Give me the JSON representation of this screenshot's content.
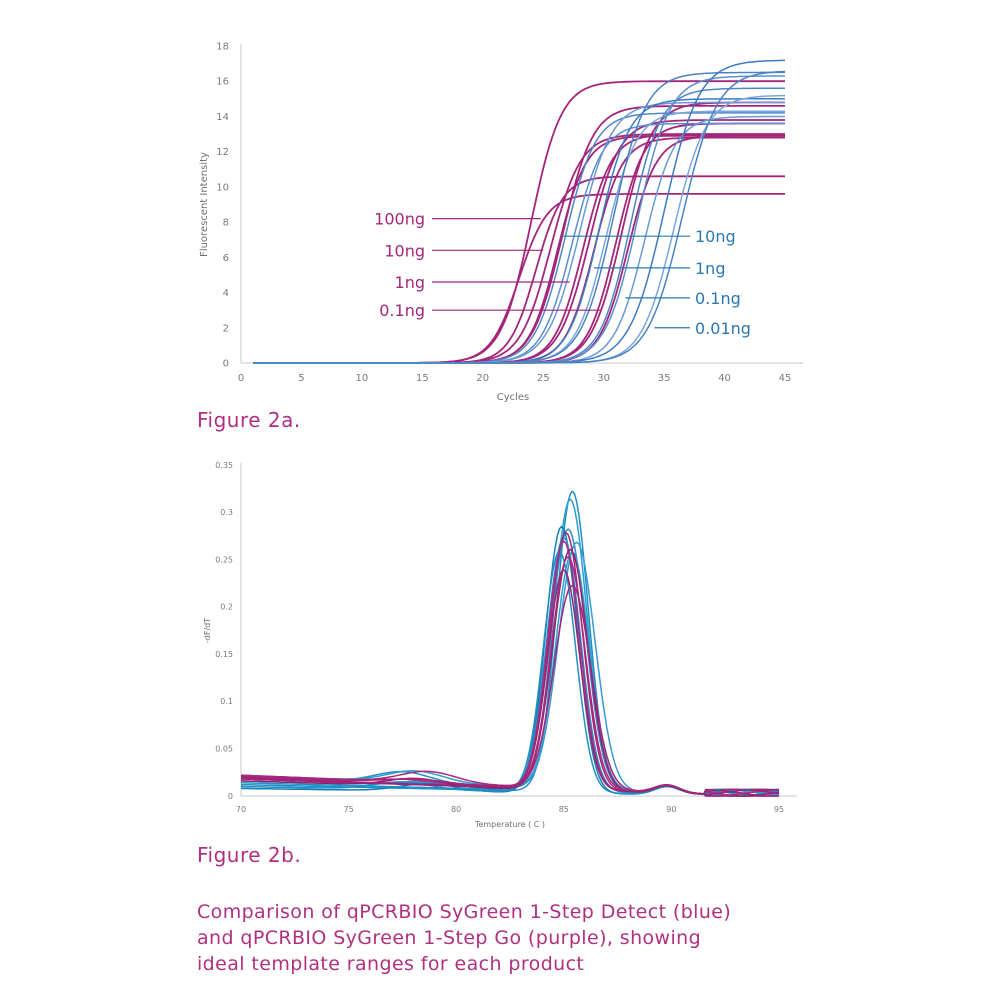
{
  "figures": {
    "fig2a": "Figure 2a.",
    "fig2b": "Figure 2b."
  },
  "caption": {
    "line1": "Comparison of qPCRBIO SyGreen 1-Step Detect (blue)",
    "line2": "and qPCRBIO SyGreen 1-Step Go (purple), showing",
    "line3": "ideal template ranges for each product"
  },
  "colors": {
    "purple": "#a4267a",
    "blue_series": [
      "#4f86c6",
      "#5b8fcf",
      "#6a99d5",
      "#3d7bbf",
      "#7aa6db",
      "#4a82c4"
    ],
    "blue_label": "#2a78b0",
    "blue_melt": [
      "#1f8fc4",
      "#2a9fd0",
      "#157fb8",
      "#2d8cc8",
      "#1993c9",
      "#3a98d2"
    ],
    "purple_melt": [
      "#a4267a",
      "#b02d84",
      "#962070",
      "#a92b7f",
      "#9a2375"
    ],
    "axis": "#c9c9c9",
    "tick_text": "#7a7a7a"
  },
  "chart_data": [
    {
      "type": "line",
      "xlabel": "Cycles",
      "ylabel": "Fluorescent Intensity",
      "xlim": [
        0,
        45
      ],
      "ylim": [
        0,
        18
      ],
      "xticks": [
        "0",
        "5",
        "10",
        "15",
        "20",
        "25",
        "30",
        "35",
        "40",
        "45"
      ],
      "yticks": [
        "0",
        "2",
        "4",
        "6",
        "8",
        "10",
        "12",
        "14",
        "16",
        "18"
      ],
      "x_start": 1,
      "annotations_left": [
        {
          "text": "100ng",
          "x": 24.8,
          "y": 8.2,
          "label_y": 8.2
        },
        {
          "text": "10ng",
          "x": 25.0,
          "y": 6.4,
          "label_y": 6.4
        },
        {
          "text": "1ng",
          "x": 27.2,
          "y": 4.6,
          "label_y": 4.6
        },
        {
          "text": "0.1ng",
          "x": 29.8,
          "y": 3.0,
          "label_y": 3.0
        }
      ],
      "annotations_right": [
        {
          "text": "10ng",
          "x": 26.5,
          "y": 7.2,
          "label_y": 7.2
        },
        {
          "text": "1ng",
          "x": 29.2,
          "y": 5.4,
          "label_y": 5.4
        },
        {
          "text": "0.1ng",
          "x": 31.8,
          "y": 3.7,
          "label_y": 3.7
        },
        {
          "text": "0.01ng",
          "x": 34.2,
          "y": 2.0,
          "label_y": 2.0
        }
      ],
      "series": [
        {
          "group": "purple",
          "midpoint": 23.0,
          "plateau": 9.6,
          "k": 0.85
        },
        {
          "group": "purple",
          "midpoint": 24.0,
          "plateau": 16.0,
          "k": 0.8
        },
        {
          "group": "purple",
          "midpoint": 24.4,
          "plateau": 10.6,
          "k": 0.9
        },
        {
          "group": "purple",
          "midpoint": 25.6,
          "plateau": 13.0,
          "k": 0.8
        },
        {
          "group": "purple",
          "midpoint": 26.2,
          "plateau": 12.9,
          "k": 0.85
        },
        {
          "group": "purple",
          "midpoint": 26.6,
          "plateau": 14.6,
          "k": 0.8
        },
        {
          "group": "purple",
          "midpoint": 28.3,
          "plateau": 13.0,
          "k": 0.85
        },
        {
          "group": "purple",
          "midpoint": 28.8,
          "plateau": 13.8,
          "k": 0.8
        },
        {
          "group": "purple",
          "midpoint": 29.2,
          "plateau": 12.8,
          "k": 0.85
        },
        {
          "group": "purple",
          "midpoint": 31.0,
          "plateau": 13.6,
          "k": 0.85
        },
        {
          "group": "purple",
          "midpoint": 31.5,
          "plateau": 14.8,
          "k": 0.8
        },
        {
          "group": "purple",
          "midpoint": 32.0,
          "plateau": 12.9,
          "k": 0.85
        },
        {
          "group": "blue",
          "midpoint": 26.8,
          "plateau": 14.2,
          "k": 0.8
        },
        {
          "group": "blue",
          "midpoint": 27.4,
          "plateau": 13.6,
          "k": 0.8
        },
        {
          "group": "blue",
          "midpoint": 28.0,
          "plateau": 14.8,
          "k": 0.75
        },
        {
          "group": "blue",
          "midpoint": 29.6,
          "plateau": 15.0,
          "k": 0.8
        },
        {
          "group": "blue",
          "midpoint": 30.2,
          "plateau": 14.3,
          "k": 0.8
        },
        {
          "group": "blue",
          "midpoint": 30.8,
          "plateau": 16.5,
          "k": 0.75
        },
        {
          "group": "blue",
          "midpoint": 32.2,
          "plateau": 15.6,
          "k": 0.8
        },
        {
          "group": "blue",
          "midpoint": 32.8,
          "plateau": 16.3,
          "k": 0.75
        },
        {
          "group": "blue",
          "midpoint": 33.4,
          "plateau": 14.0,
          "k": 0.8
        },
        {
          "group": "blue",
          "midpoint": 35.0,
          "plateau": 17.2,
          "k": 0.7
        },
        {
          "group": "blue",
          "midpoint": 35.8,
          "plateau": 15.2,
          "k": 0.75
        },
        {
          "group": "blue",
          "midpoint": 36.5,
          "plateau": 16.6,
          "k": 0.7
        }
      ]
    },
    {
      "type": "line",
      "xlabel": "Temperature ( C )",
      "ylabel": "-dF/dT",
      "xlim": [
        70,
        95
      ],
      "ylim": [
        0,
        0.35
      ],
      "xticks": [
        "70",
        "75",
        "80",
        "85",
        "90",
        "95"
      ],
      "yticks": [
        "0",
        "0.05",
        "0.1",
        "0.15",
        "0.2",
        "0.25",
        "0.3",
        "0.35"
      ],
      "series": [
        {
          "group": "blue",
          "peak_x": 85.4,
          "peak_y": 0.318,
          "width": 1.05,
          "base": 0.012
        },
        {
          "group": "blue",
          "peak_x": 85.3,
          "peak_y": 0.308,
          "width": 1.1,
          "base": 0.016
        },
        {
          "group": "blue",
          "peak_x": 84.9,
          "peak_y": 0.282,
          "width": 1.05,
          "base": 0.008
        },
        {
          "group": "blue",
          "peak_x": 85.2,
          "peak_y": 0.275,
          "width": 1.15,
          "base": 0.02
        },
        {
          "group": "blue",
          "peak_x": 85.0,
          "peak_y": 0.268,
          "width": 1.1,
          "base": 0.014
        },
        {
          "group": "blue",
          "peak_x": 85.6,
          "peak_y": 0.262,
          "width": 1.2,
          "base": 0.018
        },
        {
          "group": "blue",
          "peak_x": 84.8,
          "peak_y": 0.255,
          "width": 1.05,
          "base": 0.01
        },
        {
          "group": "blue",
          "peak_x": 85.4,
          "peak_y": 0.25,
          "width": 1.1,
          "base": 0.022
        },
        {
          "group": "purple",
          "peak_x": 85.1,
          "peak_y": 0.272,
          "width": 1.1,
          "base": 0.018
        },
        {
          "group": "purple",
          "peak_x": 85.0,
          "peak_y": 0.262,
          "width": 1.05,
          "base": 0.02
        },
        {
          "group": "purple",
          "peak_x": 85.3,
          "peak_y": 0.255,
          "width": 1.15,
          "base": 0.016
        },
        {
          "group": "purple",
          "peak_x": 85.2,
          "peak_y": 0.245,
          "width": 1.1,
          "base": 0.022
        },
        {
          "group": "purple",
          "peak_x": 85.0,
          "peak_y": 0.232,
          "width": 1.05,
          "base": 0.019
        },
        {
          "group": "purple",
          "peak_x": 85.4,
          "peak_y": 0.215,
          "width": 1.2,
          "base": 0.021
        }
      ]
    }
  ]
}
